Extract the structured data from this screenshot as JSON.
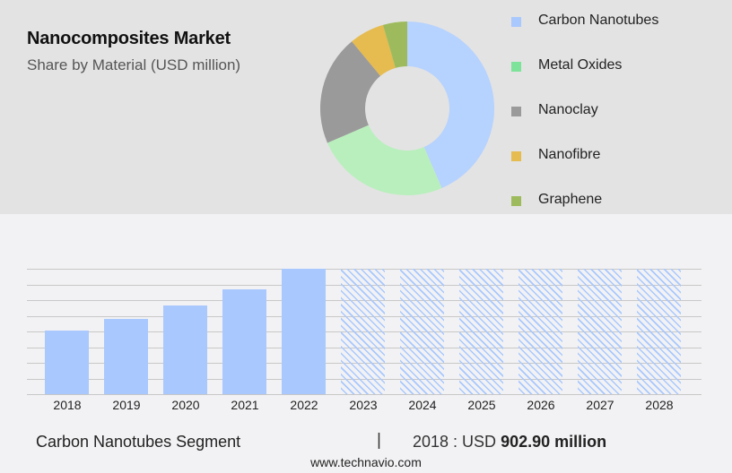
{
  "header": {
    "title": "Nanocomposites Market",
    "subtitle": "Share by Material (USD million)"
  },
  "legend": [
    {
      "label": "Carbon Nanotubes",
      "color": "#a8c8fe"
    },
    {
      "label": "Metal Oxides",
      "color": "#7de39a"
    },
    {
      "label": "Nanoclay",
      "color": "#9a9a9a"
    },
    {
      "label": "Nanofibre",
      "color": "#e6bb4f"
    },
    {
      "label": "Graphene",
      "color": "#9dbb5c"
    }
  ],
  "footer": {
    "segment": "Carbon Nanotubes Segment",
    "separator": "|",
    "value_prefix": "2018 : USD ",
    "value_bold": "902.90 million",
    "url": "www.technavio.com"
  },
  "chart_data": [
    {
      "type": "pie",
      "title": "Nanocomposites Market",
      "subtitle": "Share by Material (USD million)",
      "donut": true,
      "categories": [
        "Carbon Nanotubes",
        "Metal Oxides",
        "Nanoclay",
        "Nanofibre",
        "Graphene"
      ],
      "values": [
        43.5,
        25.0,
        20.5,
        6.5,
        4.5
      ],
      "colors": [
        "#b6d2fe",
        "#b9efbd",
        "#9a9a9a",
        "#e6bb4f",
        "#9dbb5c"
      ],
      "legend_position": "right"
    },
    {
      "type": "bar",
      "title": "Carbon Nanotubes Segment",
      "categories": [
        "2018",
        "2019",
        "2020",
        "2021",
        "2022",
        "2023",
        "2024",
        "2025",
        "2026",
        "2027",
        "2028"
      ],
      "series": [
        {
          "name": "Actual",
          "values": [
            902.9,
            1070,
            1270,
            1500,
            1790,
            null,
            null,
            null,
            null,
            null,
            null
          ]
        },
        {
          "name": "Forecast (hatched)",
          "values": [
            null,
            null,
            null,
            null,
            null,
            1790,
            1790,
            1790,
            1790,
            1790,
            1790
          ]
        }
      ],
      "annotation": "2018 : USD 902.90 million",
      "grid": true,
      "xlabel": "",
      "ylabel": "",
      "y_ticks_shown": false
    }
  ]
}
